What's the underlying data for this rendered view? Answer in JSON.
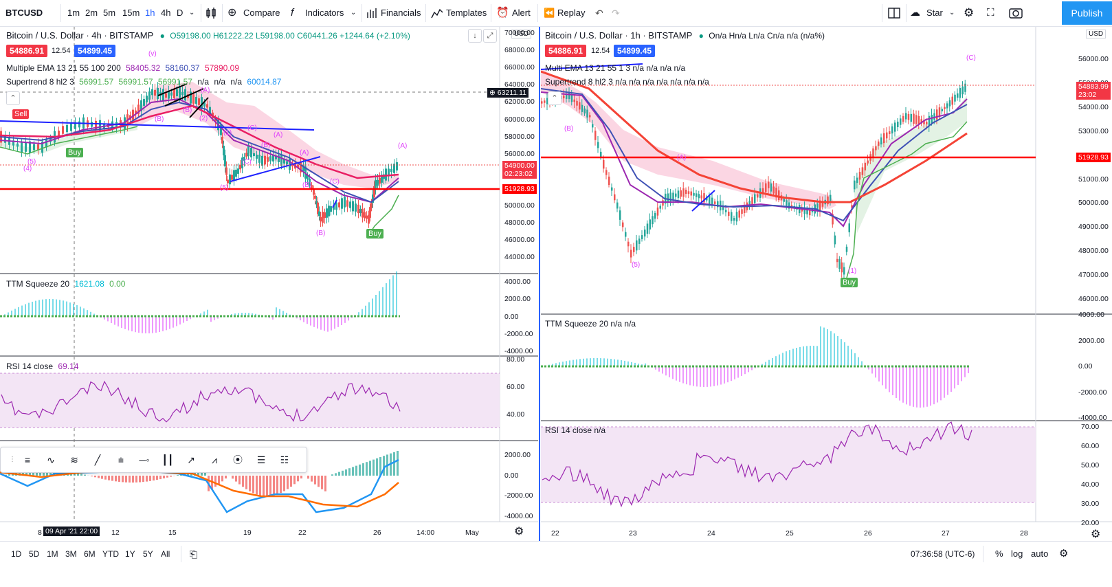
{
  "toolbar": {
    "symbol": "BTCUSD",
    "intervals": [
      "1m",
      "2m",
      "5m",
      "15m",
      "1h",
      "4h",
      "D"
    ],
    "active_interval": "1h",
    "compare": "Compare",
    "indicators": "Indicators",
    "financials": "Financials",
    "templates": "Templates",
    "alert": "Alert",
    "replay": "Replay",
    "star": "Star",
    "publish": "Publish"
  },
  "left_chart": {
    "title": "Bitcoin / U.S. Dollar · 4h · BITSTAMP",
    "ohlc": "O59198.00 H61222.22 L59198.00 C60441.26 +1244.64 (+2.10%)",
    "sell_price": "54886.91",
    "spread": "12.54",
    "buy_price": "54899.45",
    "ema_legend_name": "Multiple EMA 13 21 55 100 200",
    "ema_values": [
      "58405.32",
      "58160.37",
      "57890.09"
    ],
    "supertrend_legend_name": "Supertrend 8 hl2 3",
    "supertrend_values": [
      "56991.57",
      "56991.57",
      "56991.57",
      "n/a",
      "n/a",
      "n/a",
      "60014.87"
    ],
    "currency": "USD",
    "price_ticks": [
      "70000.00",
      "68000.00",
      "66000.00",
      "64000.00",
      "62000.00",
      "60000.00",
      "58000.00",
      "56000.00",
      "54000.00",
      "52000.00",
      "50000.00",
      "48000.00",
      "46000.00",
      "44000.00"
    ],
    "crosshair_price": "63211.11",
    "last_price": "54900.00",
    "last_countdown": "02:23:02",
    "red_line_price": "51928.93",
    "sell_label": "Sell",
    "buy_label": "Buy",
    "wave_labels": [
      "(v)",
      "(A)",
      "(B)",
      "(C)",
      "(A)",
      "(B)",
      "(C)",
      "(A)",
      "(B)",
      "(C)",
      "(A)",
      "(B)",
      "(5)",
      "(4)",
      "(5)",
      "(1)",
      "(2)",
      "(B)",
      "(1)"
    ],
    "ttm_name": "TTM Squeeze 20",
    "ttm_value_1": "1621.08",
    "ttm_value_2": "0.00",
    "ttm_ticks": [
      "4000.00",
      "2000.00",
      "0.00",
      "-2000.00",
      "-4000.00"
    ],
    "rsi_name": "RSI 14 close",
    "rsi_value": "69.14",
    "rsi_ticks": [
      "80.00",
      "60.00",
      "40.00"
    ],
    "macd_ticks": [
      "2000.00",
      "0.00",
      "-2000.00",
      "-4000.00"
    ],
    "time_ticks": [
      "8",
      "12",
      "15",
      "19",
      "22",
      "26",
      "14:00",
      "May"
    ],
    "crosshair_time": "09 Apr '21   22:00"
  },
  "right_chart": {
    "title": "Bitcoin / U.S. Dollar · 1h · BITSTAMP",
    "ohlc": "On/a Hn/a Ln/a Cn/a n/a (n/a%)",
    "sell_price": "54886.91",
    "spread": "12.54",
    "buy_price": "54899.45",
    "ema_legend": "Multi EMA 13 21 55 1 3  n/a  n/a  n/a  n/a",
    "supertrend_legend": "Supertrend 8 hl2 3  n/a  n/a  n/a  n/a  n/a  n/a  n/a",
    "currency": "USD",
    "price_ticks": [
      "56000.00",
      "55000.00",
      "54000.00",
      "53000.00",
      "52000.00",
      "51000.00",
      "50000.00",
      "49000.00",
      "48000.00",
      "47000.00",
      "46000.00"
    ],
    "last_price": "54883.99",
    "last_countdown": "23:02",
    "red_line_price": "51928.93",
    "buy_label": "Buy",
    "ttm_legend": "TTM Squeeze 20  n/a  n/a",
    "ttm_ticks": [
      "4000.00",
      "2000.00",
      "0.00",
      "-2000.00",
      "-4000.00"
    ],
    "rsi_legend": "RSI 14 close  n/a",
    "rsi_ticks": [
      "70.00",
      "60.00",
      "50.00",
      "40.00",
      "30.00",
      "20.00"
    ],
    "time_ticks": [
      "22",
      "23",
      "24",
      "25",
      "26",
      "27",
      "28"
    ]
  },
  "bottom_bar": {
    "ranges": [
      "1D",
      "5D",
      "1M",
      "3M",
      "6M",
      "YTD",
      "1Y",
      "5Y",
      "All"
    ],
    "clock": "07:36:58 (UTC-6)",
    "percent": "%",
    "log": "log",
    "auto": "auto"
  },
  "colors": {
    "accent": "#2962ff",
    "publish": "#2196f3",
    "sell_badge": "#f23645",
    "buy_badge": "#2962ff",
    "red_line": "#ff0000",
    "supertrend_up": "#4caf50"
  }
}
